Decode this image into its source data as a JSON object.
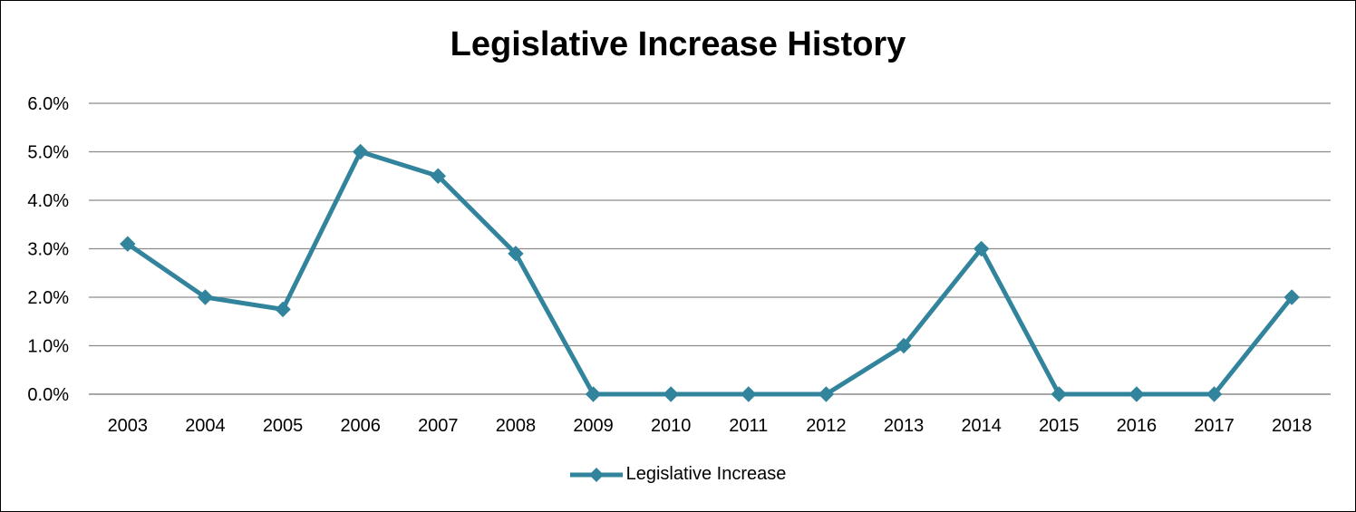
{
  "chart_data": {
    "type": "line",
    "title": "Legislative Increase History",
    "xlabel": "",
    "ylabel": "",
    "categories": [
      "2003",
      "2004",
      "2005",
      "2006",
      "2007",
      "2008",
      "2009",
      "2010",
      "2011",
      "2012",
      "2013",
      "2014",
      "2015",
      "2016",
      "2017",
      "2018"
    ],
    "series": [
      {
        "name": "Legislative Increase",
        "values": [
          3.1,
          2.0,
          1.75,
          5.0,
          4.5,
          2.9,
          0.0,
          0.0,
          0.0,
          0.0,
          1.0,
          3.0,
          0.0,
          0.0,
          0.0,
          2.0
        ],
        "color": "#31849B",
        "marker": "diamond"
      }
    ],
    "ylim": [
      0,
      6
    ],
    "yticks": [
      "0.0%",
      "1.0%",
      "2.0%",
      "3.0%",
      "4.0%",
      "5.0%",
      "6.0%"
    ],
    "grid": "horizontal",
    "legend_position": "bottom"
  }
}
